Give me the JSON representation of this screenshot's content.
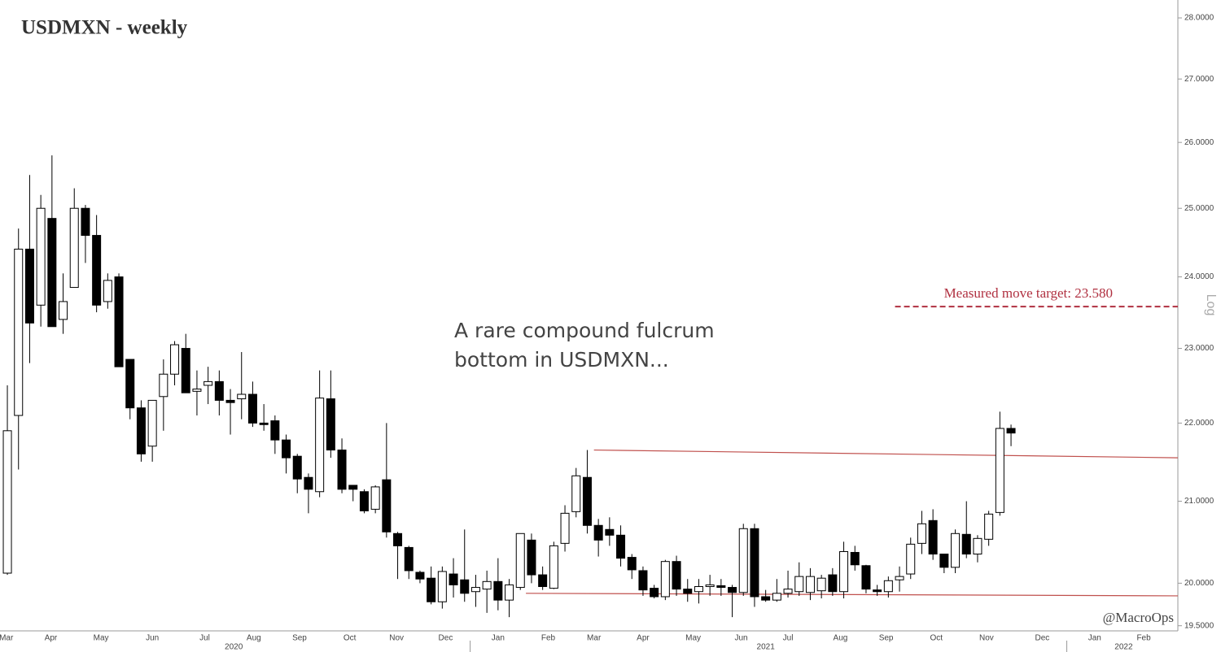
{
  "chart_data": {
    "type": "candlestick",
    "title": "USDMXN - weekly",
    "log_scale": true,
    "log_label": "Log",
    "up_color": "#ffffff",
    "down_color": "#000000",
    "x": [
      0,
      1,
      2,
      3,
      4,
      5,
      6,
      7,
      8,
      9,
      10,
      11,
      12,
      13,
      14,
      15,
      16,
      17,
      18,
      19,
      20,
      21,
      22,
      23,
      24,
      25,
      26,
      27,
      28,
      29,
      30,
      31,
      32,
      33,
      34,
      35,
      36,
      37,
      38,
      39,
      40,
      41,
      42,
      43,
      44,
      45,
      46,
      47,
      48,
      49,
      50,
      51,
      52,
      53,
      54,
      55,
      56,
      57,
      58,
      59,
      60,
      61,
      62,
      63,
      64,
      65,
      66,
      67,
      68,
      69,
      70,
      71,
      72,
      73,
      74,
      75,
      76,
      77,
      78,
      79,
      80,
      81,
      82,
      83,
      84,
      85,
      86,
      87,
      88,
      89,
      90
    ],
    "open": [
      20.12,
      22.1,
      24.4,
      23.6,
      24.85,
      23.4,
      23.85,
      25.0,
      24.6,
      23.65,
      24.0,
      22.85,
      22.2,
      21.7,
      22.35,
      22.65,
      23.0,
      22.42,
      22.5,
      22.55,
      22.3,
      22.32,
      22.38,
      22.0,
      22.03,
      21.78,
      21.57,
      21.3,
      21.12,
      22.32,
      21.65,
      21.2,
      21.12,
      20.9,
      21.27,
      20.6,
      20.43,
      20.13,
      20.06,
      19.78,
      20.11,
      20.04,
      19.9,
      19.93,
      20.02,
      19.8,
      19.95,
      20.52,
      20.1,
      19.94,
      20.48,
      20.87,
      21.3,
      20.7,
      20.65,
      20.58,
      20.31,
      20.15,
      19.94,
      19.84,
      20.26,
      19.93,
      19.9,
      19.96,
      19.97,
      19.95,
      19.89,
      20.66,
      19.84,
      19.8,
      19.88,
      19.9,
      19.89,
      19.91,
      20.1,
      19.9,
      20.37,
      20.21,
      19.92,
      19.9,
      20.04,
      20.11,
      20.48,
      20.76,
      20.35,
      20.19,
      20.59,
      20.35,
      20.53,
      20.86,
      21.93
    ],
    "high": [
      22.5,
      24.7,
      25.5,
      25.2,
      25.8,
      24.05,
      25.3,
      25.05,
      24.9,
      24.05,
      24.05,
      22.85,
      22.3,
      22.3,
      22.85,
      23.1,
      23.2,
      22.7,
      22.75,
      22.7,
      22.45,
      22.95,
      22.55,
      22.25,
      22.1,
      21.85,
      21.6,
      21.35,
      22.7,
      22.7,
      21.8,
      21.2,
      21.15,
      21.2,
      22.0,
      20.62,
      20.45,
      20.15,
      20.2,
      20.2,
      20.3,
      20.65,
      20.1,
      20.15,
      20.3,
      20.05,
      20.6,
      20.6,
      20.2,
      20.5,
      20.95,
      21.42,
      21.65,
      20.78,
      20.8,
      20.7,
      20.35,
      20.2,
      19.98,
      20.28,
      20.33,
      20.05,
      20.05,
      20.1,
      20.05,
      19.98,
      20.72,
      20.72,
      19.92,
      20.05,
      20.15,
      20.25,
      20.18,
      20.1,
      20.18,
      20.5,
      20.45,
      20.22,
      19.98,
      20.08,
      20.2,
      20.55,
      20.88,
      20.9,
      20.35,
      20.65,
      21.0,
      20.58,
      20.88,
      22.15,
      21.98
    ],
    "low": [
      20.1,
      21.4,
      22.8,
      23.3,
      23.3,
      23.2,
      23.85,
      24.2,
      23.5,
      23.55,
      22.75,
      22.05,
      21.5,
      21.5,
      21.9,
      22.5,
      22.4,
      22.1,
      22.25,
      22.1,
      21.85,
      22.05,
      21.95,
      21.9,
      21.6,
      21.35,
      21.1,
      20.85,
      21.05,
      21.55,
      21.1,
      21.0,
      20.85,
      20.85,
      20.55,
      20.05,
      20.05,
      20.0,
      19.75,
      19.7,
      19.83,
      19.78,
      19.72,
      19.65,
      19.68,
      19.6,
      19.92,
      20.0,
      19.92,
      19.93,
      20.38,
      20.8,
      20.6,
      20.32,
      20.45,
      20.2,
      20.05,
      19.85,
      19.82,
      19.8,
      19.85,
      19.78,
      19.76,
      19.85,
      19.85,
      19.6,
      19.85,
      19.72,
      19.78,
      19.78,
      19.83,
      19.85,
      19.8,
      19.82,
      19.85,
      19.82,
      20.15,
      19.88,
      19.85,
      19.83,
      19.9,
      20.05,
      20.35,
      20.28,
      20.12,
      20.12,
      20.3,
      20.25,
      20.45,
      20.82,
      21.7
    ],
    "close": [
      21.9,
      24.4,
      23.35,
      25.0,
      23.3,
      23.65,
      25.0,
      24.6,
      23.6,
      23.95,
      22.75,
      22.2,
      21.6,
      22.3,
      22.65,
      23.05,
      22.4,
      22.45,
      22.55,
      22.3,
      22.27,
      22.38,
      22.0,
      21.98,
      21.78,
      21.55,
      21.28,
      21.15,
      22.33,
      21.65,
      21.15,
      21.15,
      20.88,
      21.18,
      20.62,
      20.45,
      20.15,
      20.05,
      19.78,
      20.14,
      19.98,
      19.88,
      19.95,
      20.02,
      19.8,
      19.98,
      20.6,
      20.1,
      19.96,
      20.45,
      20.85,
      21.32,
      20.7,
      20.52,
      20.58,
      20.3,
      20.16,
      19.92,
      19.84,
      20.26,
      19.93,
      19.88,
      19.96,
      19.98,
      19.95,
      19.89,
      20.66,
      19.84,
      19.8,
      19.88,
      19.93,
      20.08,
      20.08,
      20.06,
      19.9,
      20.38,
      20.22,
      19.93,
      19.9,
      20.03,
      20.08,
      20.47,
      20.72,
      20.35,
      20.19,
      20.6,
      20.35,
      20.54,
      20.84,
      21.93,
      21.87
    ],
    "xlim": [
      -0.66,
      104.96
    ],
    "ylim": [
      19.45,
      28.3
    ],
    "yticks": [
      {
        "value": 19.5,
        "label": "19.5000"
      },
      {
        "value": 20,
        "label": "20.0000"
      },
      {
        "value": 21,
        "label": "21.0000"
      },
      {
        "value": 22,
        "label": "22.0000"
      },
      {
        "value": 23,
        "label": "23.0000"
      },
      {
        "value": 24,
        "label": "24.0000"
      },
      {
        "value": 25,
        "label": "25.0000"
      },
      {
        "value": 26,
        "label": "26.0000"
      },
      {
        "value": 27,
        "label": "27.0000"
      },
      {
        "value": 28,
        "label": "28.0000"
      }
    ],
    "xticks": [
      {
        "value": -0.1,
        "label": "Mar"
      },
      {
        "value": 3.9,
        "label": "Apr"
      },
      {
        "value": 8.4,
        "label": "May"
      },
      {
        "value": 13.0,
        "label": "Jun"
      },
      {
        "value": 17.7,
        "label": "Jul"
      },
      {
        "value": 22.1,
        "label": "Aug"
      },
      {
        "value": 26.2,
        "label": "Sep"
      },
      {
        "value": 30.7,
        "label": "Oct"
      },
      {
        "value": 34.9,
        "label": "Nov"
      },
      {
        "value": 39.3,
        "label": "Dec"
      },
      {
        "value": 44.0,
        "label": "Jan"
      },
      {
        "value": 48.5,
        "label": "Feb"
      },
      {
        "value": 52.6,
        "label": "Mar"
      },
      {
        "value": 57.0,
        "label": "Apr"
      },
      {
        "value": 61.5,
        "label": "May"
      },
      {
        "value": 65.8,
        "label": "Jun"
      },
      {
        "value": 70.0,
        "label": "Jul"
      },
      {
        "value": 74.7,
        "label": "Aug"
      },
      {
        "value": 78.8,
        "label": "Sep"
      },
      {
        "value": 83.3,
        "label": "Oct"
      },
      {
        "value": 87.8,
        "label": "Nov"
      },
      {
        "value": 92.8,
        "label": "Dec"
      },
      {
        "value": 97.5,
        "label": "Jan"
      },
      {
        "value": 101.9,
        "label": "Feb"
      }
    ],
    "year_labels": [
      {
        "value": 20.3,
        "label": "2020"
      },
      {
        "value": 68.0,
        "label": "2021"
      },
      {
        "value": 100.1,
        "label": "2022"
      }
    ],
    "year_dividers": [
      41.5,
      95.0
    ],
    "trend_lines": [
      {
        "x": [
          52.6,
          104.96
        ],
        "y": [
          21.65,
          21.55
        ],
        "color": "#c0504d"
      },
      {
        "x": [
          46.5,
          104.96
        ],
        "y": [
          19.88,
          19.85
        ],
        "color": "#c0504d"
      }
    ],
    "target": {
      "value": 23.58,
      "x": [
        79.6,
        104.96
      ],
      "label": "Measured move target: 23.580",
      "color": "#b03040"
    },
    "annotation": [
      "A rare compound fulcrum",
      "bottom in USDMXN..."
    ],
    "credit": "@MacroOps"
  }
}
